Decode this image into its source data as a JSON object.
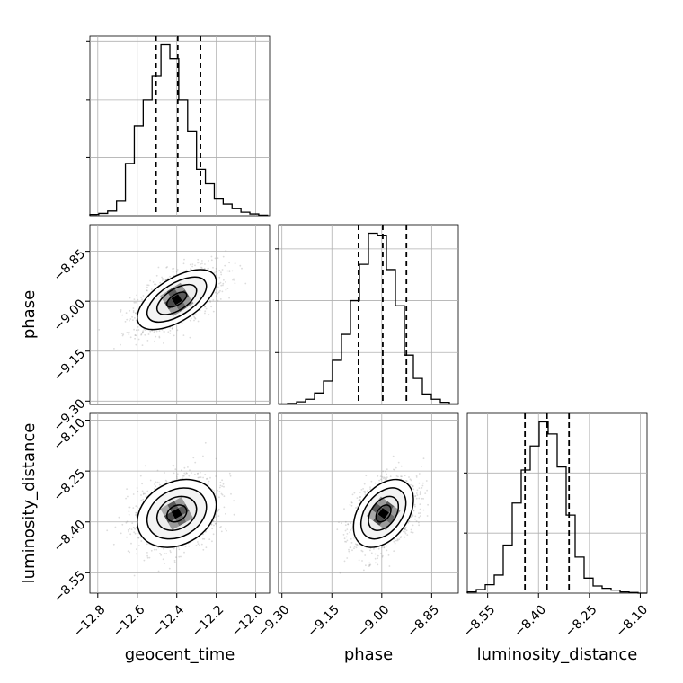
{
  "chart_data": {
    "type": "corner",
    "parameters": [
      "geocent_time",
      "phase",
      "luminosity_distance"
    ],
    "axis_labels": {
      "x": [
        "geocent_time",
        "phase",
        "luminosity_distance"
      ],
      "y": [
        "phase",
        "luminosity_distance"
      ]
    },
    "ticks": {
      "geocent_time": {
        "values": [
          -12.8,
          -12.6,
          -12.4,
          -12.2,
          -12.0
        ],
        "labels": [
          "−12.8",
          "−12.6",
          "−12.4",
          "−12.2",
          "−12.0"
        ]
      },
      "phase": {
        "values": [
          -9.3,
          -9.15,
          -9.0,
          -8.85
        ],
        "labels": [
          "−9.30",
          "−9.15",
          "−9.00",
          "−8.85"
        ]
      },
      "luminosity_distance": {
        "values": [
          -8.55,
          -8.4,
          -8.25,
          -8.1
        ],
        "labels": [
          "−8.55",
          "−8.40",
          "−8.25",
          "−8.10"
        ]
      }
    },
    "ranges": {
      "geocent_time": [
        -12.84,
        -11.93
      ],
      "phase": [
        -9.31,
        -8.77
      ],
      "luminosity_distance": [
        -8.61,
        -8.08
      ]
    },
    "histograms": {
      "geocent_time": {
        "bin_edges": [
          -12.84,
          -12.795,
          -12.75,
          -12.705,
          -12.66,
          -12.615,
          -12.57,
          -12.525,
          -12.48,
          -12.435,
          -12.39,
          -12.345,
          -12.3,
          -12.255,
          -12.21,
          -12.165,
          -12.12,
          -12.075,
          -12.03,
          -11.985,
          -11.94
        ],
        "counts": [
          2,
          4,
          8,
          25,
          90,
          155,
          200,
          240,
          295,
          270,
          200,
          145,
          80,
          55,
          30,
          20,
          12,
          6,
          3,
          1
        ],
        "quantiles": [
          -12.505,
          -12.395,
          -12.28
        ]
      },
      "phase": {
        "bin_edges": [
          -9.31,
          -9.283,
          -9.256,
          -9.229,
          -9.202,
          -9.175,
          -9.148,
          -9.121,
          -9.094,
          -9.067,
          -9.04,
          -9.013,
          -8.986,
          -8.959,
          -8.932,
          -8.905,
          -8.878,
          -8.851,
          -8.824,
          -8.797,
          -8.77
        ],
        "counts": [
          1,
          2,
          5,
          10,
          22,
          45,
          85,
          135,
          200,
          270,
          330,
          325,
          260,
          190,
          95,
          50,
          20,
          10,
          4,
          1
        ],
        "quantiles": [
          -9.07,
          -8.997,
          -8.926
        ]
      },
      "luminosity_distance": {
        "bin_edges": [
          -8.61,
          -8.5835,
          -8.557,
          -8.5305,
          -8.504,
          -8.4775,
          -8.451,
          -8.4245,
          -8.398,
          -8.3715,
          -8.345,
          -8.3185,
          -8.292,
          -8.2655,
          -8.239,
          -8.2125,
          -8.186,
          -8.1595,
          -8.133,
          -8.1065,
          -8.08
        ],
        "counts": [
          2,
          6,
          14,
          30,
          80,
          150,
          205,
          245,
          285,
          265,
          210,
          130,
          60,
          25,
          12,
          8,
          5,
          2,
          1,
          0
        ],
        "quantiles": [
          -8.44,
          -8.375,
          -8.31
        ]
      }
    },
    "joint_2d": [
      {
        "x": "geocent_time",
        "y": "phase",
        "mean": [
          -12.4,
          -8.995
        ],
        "sd": [
          0.1,
          0.045
        ],
        "corr": 0.6
      },
      {
        "x": "geocent_time",
        "y": "luminosity_distance",
        "mean": [
          -12.4,
          -8.375
        ],
        "sd": [
          0.1,
          0.05
        ],
        "corr": 0.25
      },
      {
        "x": "phase",
        "y": "luminosity_distance",
        "mean": [
          -8.995,
          -8.375
        ],
        "sd": [
          0.045,
          0.05
        ],
        "corr": 0.4
      }
    ],
    "contour_levels_sigma": [
      0.5,
      1.0,
      1.5,
      2.0
    ],
    "grid": true,
    "colors": {
      "hist_line": "#000000",
      "quantile_line": "#000000",
      "grid": "#b0b0b0",
      "scatter": "#808080",
      "contour": "#000000"
    }
  }
}
